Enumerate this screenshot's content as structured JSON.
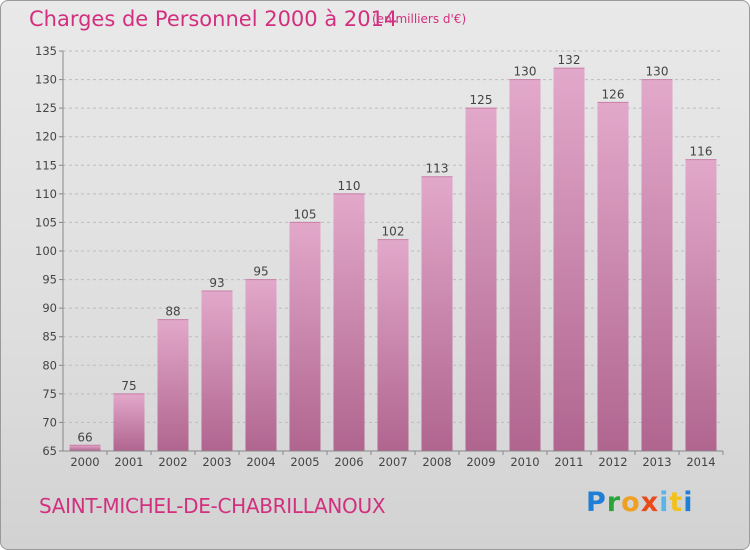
{
  "title": "Charges de Personnel 2000 à 2014",
  "subtitle": "(en milliers d'€)",
  "location": "SAINT-MICHEL-DE-CHABRILLANOUX",
  "logo_text": "Proxiti",
  "colors": {
    "accent": "#d2307f",
    "bar_top": "#e2a8ca",
    "bar_bottom": "#b0658f"
  },
  "chart_data": {
    "type": "bar",
    "title": "Charges de Personnel 2000 à 2014",
    "subtitle": "(en milliers d'€)",
    "categories": [
      "2000",
      "2001",
      "2002",
      "2003",
      "2004",
      "2005",
      "2006",
      "2007",
      "2008",
      "2009",
      "2010",
      "2011",
      "2012",
      "2013",
      "2014"
    ],
    "values": [
      66,
      75,
      88,
      93,
      95,
      105,
      110,
      102,
      113,
      125,
      130,
      132,
      126,
      130,
      116
    ],
    "ylim": [
      65,
      135
    ],
    "yticks": [
      65,
      70,
      75,
      80,
      85,
      90,
      95,
      100,
      105,
      110,
      115,
      120,
      125,
      130,
      135
    ],
    "grid": true,
    "data_labels": true
  }
}
